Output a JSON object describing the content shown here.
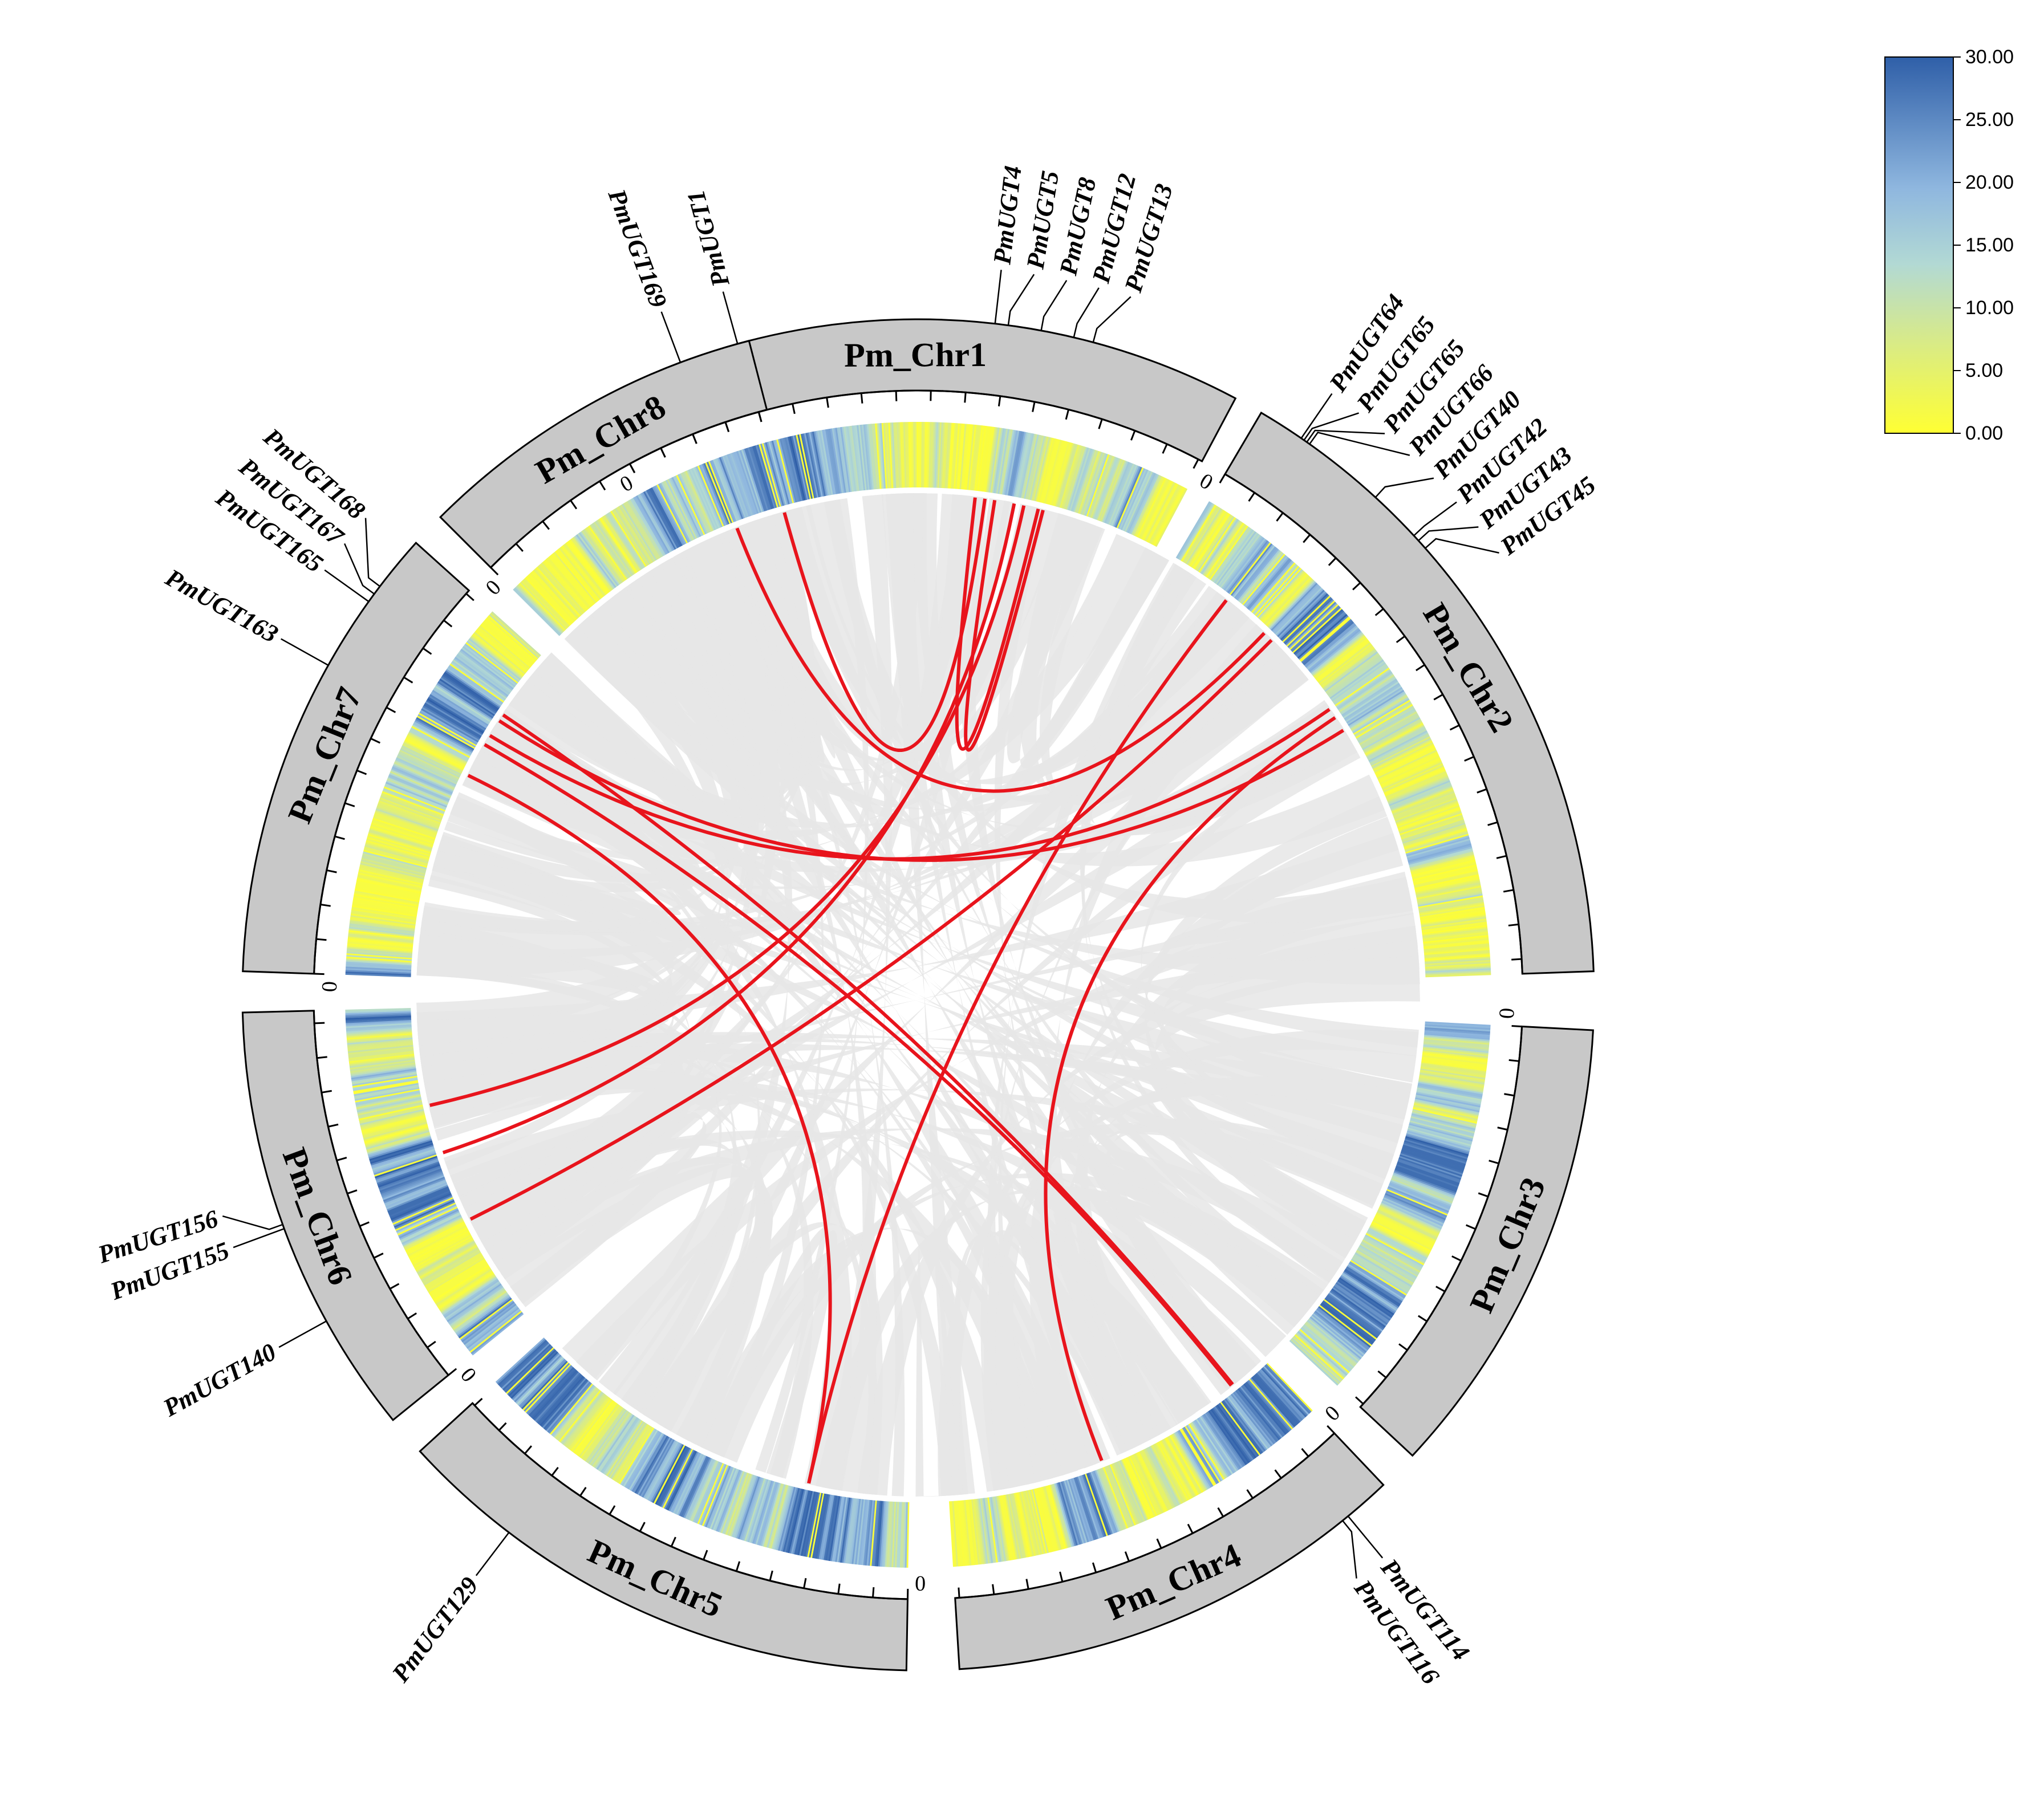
{
  "chart_data": {
    "type": "circos",
    "title": "",
    "chromosomes": [
      {
        "id": "chr1",
        "label": "Pm_Chr1",
        "tick_start": "0"
      },
      {
        "id": "chr2",
        "label": "Pm_Chr2",
        "tick_start": "0"
      },
      {
        "id": "chr3",
        "label": "Pm_Chr3",
        "tick_start": "0"
      },
      {
        "id": "chr4",
        "label": "Pm_Chr4",
        "tick_start": "0"
      },
      {
        "id": "chr5",
        "label": "Pm_Chr5",
        "tick_start": "0"
      },
      {
        "id": "chr6",
        "label": "Pm_Chr6",
        "tick_start": "0"
      },
      {
        "id": "chr7",
        "label": "Pm_Chr7",
        "tick_start": "0"
      },
      {
        "id": "chr8",
        "label": "Pm_Chr8",
        "tick_start": "0"
      }
    ],
    "genes": [
      {
        "name": "PmUGT1",
        "chr": "chr1",
        "pos": 0.23
      },
      {
        "name": "PmUGT4",
        "chr": "chr1",
        "pos": 0.62
      },
      {
        "name": "PmUGT5",
        "chr": "chr1",
        "pos": 0.64
      },
      {
        "name": "PmUGT8",
        "chr": "chr1",
        "pos": 0.69
      },
      {
        "name": "PmUGT12",
        "chr": "chr1",
        "pos": 0.74
      },
      {
        "name": "PmUGT13",
        "chr": "chr1",
        "pos": 0.77
      },
      {
        "name": "PmUGT64",
        "chr": "chr2",
        "pos": 0.07
      },
      {
        "name": "PmUGT65",
        "chr": "chr2",
        "pos": 0.075
      },
      {
        "name": "PmUGT65",
        "chr": "chr2",
        "pos": 0.08
      },
      {
        "name": "PmUGT66",
        "chr": "chr2",
        "pos": 0.085
      },
      {
        "name": "PmUGT40",
        "chr": "chr2",
        "pos": 0.21
      },
      {
        "name": "PmUGT42",
        "chr": "chr2",
        "pos": 0.29
      },
      {
        "name": "PmUGT43",
        "chr": "chr2",
        "pos": 0.3
      },
      {
        "name": "PmUGT45",
        "chr": "chr2",
        "pos": 0.315
      },
      {
        "name": "PmUGT114",
        "chr": "chr4",
        "pos": 0.1
      },
      {
        "name": "PmUGT116",
        "chr": "chr4",
        "pos": 0.115
      },
      {
        "name": "PmUGT129",
        "chr": "chr5",
        "pos": 0.78
      },
      {
        "name": "PmUGT140",
        "chr": "chr6",
        "pos": 0.27
      },
      {
        "name": "PmUGT155",
        "chr": "chr6",
        "pos": 0.5
      },
      {
        "name": "PmUGT156",
        "chr": "chr6",
        "pos": 0.51
      },
      {
        "name": "PmUGT163",
        "chr": "chr7",
        "pos": 0.68
      },
      {
        "name": "PmUGT165",
        "chr": "chr7",
        "pos": 0.84
      },
      {
        "name": "PmUGT167",
        "chr": "chr7",
        "pos": 0.86
      },
      {
        "name": "PmUGT168",
        "chr": "chr7",
        "pos": 0.88
      },
      {
        "name": "PmUGT169",
        "chr": "chr8",
        "pos": 0.8
      }
    ],
    "highlight_links": [
      {
        "a": {
          "chr": "chr1",
          "pos": 0.23
        },
        "b": {
          "chr": "chr1",
          "pos": 0.64
        }
      },
      {
        "a": {
          "chr": "chr1",
          "pos": 0.62
        },
        "b": {
          "chr": "chr1",
          "pos": 0.75
        }
      },
      {
        "a": {
          "chr": "chr1",
          "pos": 0.66
        },
        "b": {
          "chr": "chr1",
          "pos": 0.76
        }
      },
      {
        "a": {
          "chr": "chr1",
          "pos": 0.7
        },
        "b": {
          "chr": "chr6",
          "pos": 0.55
        }
      },
      {
        "a": {
          "chr": "chr1",
          "pos": 0.72
        },
        "b": {
          "chr": "chr6",
          "pos": 0.7
        }
      },
      {
        "a": {
          "chr": "chr2",
          "pos": 0.23
        },
        "b": {
          "chr": "chr8",
          "pos": 0.78
        }
      },
      {
        "a": {
          "chr": "chr2",
          "pos": 0.25
        },
        "b": {
          "chr": "chr6",
          "pos": 0.33
        }
      },
      {
        "a": {
          "chr": "chr2",
          "pos": 0.13
        },
        "b": {
          "chr": "chr5",
          "pos": 0.25
        }
      },
      {
        "a": {
          "chr": "chr2",
          "pos": 0.43
        },
        "b": {
          "chr": "chr7",
          "pos": 0.73
        }
      },
      {
        "a": {
          "chr": "chr2",
          "pos": 0.48
        },
        "b": {
          "chr": "chr7",
          "pos": 0.78
        }
      },
      {
        "a": {
          "chr": "chr2",
          "pos": 0.45
        },
        "b": {
          "chr": "chr4",
          "pos": 0.55
        }
      },
      {
        "a": {
          "chr": "chr7",
          "pos": 0.8
        },
        "b": {
          "chr": "chr4",
          "pos": 0.115
        }
      },
      {
        "a": {
          "chr": "chr7",
          "pos": 0.7
        },
        "b": {
          "chr": "chr4",
          "pos": 0.12
        }
      },
      {
        "a": {
          "chr": "chr7",
          "pos": 0.6
        },
        "b": {
          "chr": "chr5",
          "pos": 0.25
        }
      }
    ],
    "legend": {
      "type": "colorbar",
      "position": "top-right",
      "min": 0,
      "max": 30,
      "colors": [
        "#ffff33",
        "#c8e6a0",
        "#a4cfe0",
        "#5f8fc8",
        "#2f5fa8"
      ],
      "ticks": [
        "30.00",
        "25.00",
        "20.00",
        "15.00",
        "10.00",
        "5.00",
        "0.00"
      ]
    },
    "colors": {
      "chromosome_fill": "#c8c8c8",
      "highlight_link": "#e8141c",
      "background_link": "#e6e6e6"
    }
  }
}
